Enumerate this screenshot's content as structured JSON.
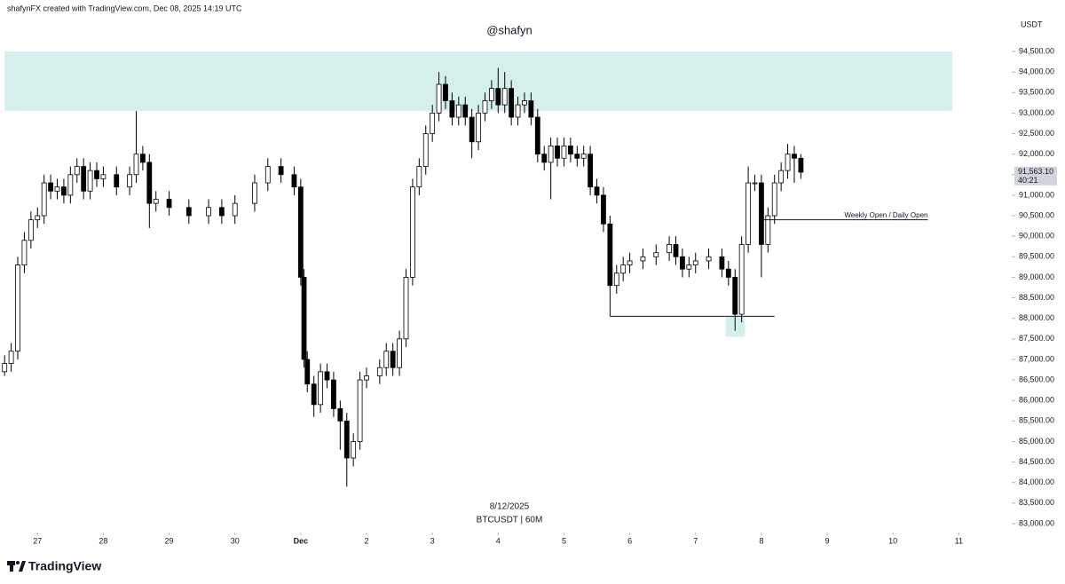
{
  "chart_data": {
    "type": "candlestick",
    "header": "shafynFX created with TradingView.com, Dec 08, 2025 14:19 UTC",
    "watermark": "@shafyn",
    "currency": "USDT",
    "date_label": "8/12/2025",
    "symbol_label": "BTCUSDT | 60M",
    "brand": "TradingView",
    "up_color": "#ffffff",
    "down_color": "#000000",
    "x": [
      -0.5,
      -0.4,
      -0.3,
      -0.2,
      -0.1,
      0,
      0.1,
      0.2,
      0.3,
      0.4,
      0.5,
      0.6,
      0.7,
      0.8,
      0.9,
      1.0,
      1.2,
      1.4,
      1.5,
      1.6,
      1.7,
      1.8,
      2.0,
      2.3,
      2.6,
      2.8,
      3.0,
      3.3,
      3.5,
      3.7,
      3.9,
      4.0,
      4.05,
      4.1,
      4.2,
      4.3,
      4.4,
      4.5,
      4.6,
      4.7,
      4.8,
      4.9,
      5.0,
      5.2,
      5.3,
      5.4,
      5.5,
      5.6,
      5.7,
      5.8,
      5.9,
      6.0,
      6.1,
      6.2,
      6.3,
      6.4,
      6.5,
      6.6,
      6.7,
      6.8,
      6.9,
      7.0,
      7.1,
      7.2,
      7.3,
      7.4,
      7.5,
      7.6,
      7.7,
      7.8,
      7.9,
      8.0,
      8.1,
      8.2,
      8.3,
      8.4,
      8.5,
      8.6,
      8.7,
      8.8,
      8.9,
      9.0,
      9.2,
      9.4,
      9.6,
      9.7,
      9.8,
      9.9,
      10.0,
      10.2,
      10.4,
      10.5,
      10.6,
      10.7,
      10.8,
      10.9,
      11.0,
      11.1,
      11.2,
      11.3,
      11.4,
      11.5,
      11.6
    ],
    "open": [
      86700,
      86900,
      87200,
      89300,
      89900,
      90400,
      90500,
      91300,
      91100,
      91200,
      91000,
      91500,
      91700,
      91100,
      91600,
      91400,
      91500,
      91200,
      91500,
      92000,
      91800,
      90800,
      90900,
      90700,
      90500,
      90700,
      90500,
      90800,
      91300,
      91700,
      91500,
      91200,
      89000,
      87000,
      86400,
      85900,
      86700,
      86500,
      85800,
      85500,
      84600,
      85000,
      86500,
      86600,
      86800,
      87200,
      86800,
      87500,
      89000,
      91200,
      91700,
      92500,
      93000,
      93700,
      93300,
      92900,
      93200,
      92900,
      92300,
      93000,
      93300,
      93600,
      93200,
      93600,
      92900,
      93200,
      93300,
      92900,
      92000,
      91800,
      92200,
      91900,
      92200,
      92000,
      91900,
      92000,
      91200,
      91000,
      90300,
      88800,
      89100,
      89300,
      89400,
      89500,
      89600,
      89800,
      89500,
      89200,
      89300,
      89400,
      89500,
      89200,
      89000,
      88100,
      89800,
      91300,
      91300,
      89800,
      90500,
      91300,
      91600,
      92000,
      91900
    ],
    "high": [
      87100,
      87400,
      89500,
      90100,
      90600,
      90700,
      91500,
      91500,
      91400,
      91400,
      91700,
      91900,
      91900,
      91800,
      91800,
      91700,
      91700,
      91700,
      93050,
      92200,
      92000,
      91100,
      91100,
      90900,
      90900,
      90900,
      91000,
      91500,
      91900,
      91900,
      91700,
      91400,
      89200,
      87200,
      86600,
      86900,
      86900,
      86700,
      86000,
      85700,
      85200,
      86700,
      86800,
      87000,
      87400,
      87400,
      87700,
      89200,
      91400,
      91900,
      92700,
      93200,
      94000,
      93900,
      93500,
      93400,
      93400,
      93100,
      93200,
      93500,
      93800,
      94100,
      94000,
      93800,
      93400,
      93500,
      93500,
      93100,
      92200,
      92400,
      92400,
      92400,
      92400,
      92200,
      92200,
      92200,
      91400,
      91200,
      90500,
      89300,
      89500,
      89600,
      89700,
      89800,
      90000,
      90000,
      89700,
      89500,
      89600,
      89700,
      89700,
      89400,
      89200,
      90000,
      91700,
      91500,
      91500,
      90700,
      91500,
      91800,
      92250,
      92200,
      92000
    ],
    "low": [
      86600,
      86700,
      87000,
      89100,
      89700,
      90200,
      90300,
      90900,
      90900,
      90800,
      90800,
      91300,
      90900,
      90900,
      91200,
      91200,
      91000,
      91000,
      91300,
      91600,
      90200,
      90600,
      90500,
      90300,
      90300,
      90300,
      90300,
      90600,
      91100,
      91300,
      91000,
      88800,
      86800,
      86200,
      85600,
      85700,
      86300,
      85600,
      84800,
      83900,
      84400,
      84800,
      86300,
      86400,
      86600,
      86600,
      86600,
      87300,
      88800,
      91000,
      91500,
      92300,
      92800,
      93100,
      92700,
      92700,
      92700,
      91900,
      92100,
      92800,
      93100,
      93000,
      93000,
      92700,
      92700,
      93000,
      92700,
      91800,
      91600,
      90900,
      91700,
      91700,
      91800,
      91700,
      91700,
      91000,
      90800,
      90100,
      88050,
      88600,
      88900,
      89100,
      89200,
      89300,
      89400,
      89300,
      89000,
      89000,
      89100,
      89200,
      89000,
      88800,
      87700,
      87900,
      89600,
      91100,
      89000,
      89600,
      90300,
      91100,
      91400,
      91300,
      91400
    ],
    "close": [
      86900,
      87200,
      89300,
      89900,
      90400,
      90500,
      91300,
      91100,
      91200,
      91000,
      91500,
      91700,
      91100,
      91600,
      91400,
      91500,
      91200,
      91500,
      92000,
      91800,
      90800,
      90900,
      90700,
      90500,
      90700,
      90500,
      90800,
      91300,
      91700,
      91500,
      91200,
      89000,
      87000,
      86400,
      85900,
      86700,
      86500,
      85800,
      85500,
      84600,
      85000,
      86500,
      86600,
      86800,
      87200,
      86800,
      87500,
      89000,
      91200,
      91700,
      92500,
      93000,
      93700,
      93300,
      92900,
      93200,
      92900,
      92300,
      93000,
      93300,
      93600,
      93200,
      93600,
      92900,
      93200,
      93300,
      92900,
      92000,
      91800,
      92200,
      91900,
      92200,
      92000,
      91900,
      92000,
      91200,
      91000,
      90300,
      88800,
      89100,
      89300,
      89400,
      89500,
      89600,
      89800,
      89500,
      89200,
      89300,
      89400,
      89500,
      89200,
      89000,
      88100,
      89800,
      91300,
      91300,
      89800,
      90500,
      91300,
      91600,
      92000,
      91900,
      91560
    ],
    "xlim": [
      -0.57,
      14.4
    ],
    "ylim": [
      82500,
      95500
    ],
    "xticks": [
      {
        "value": 0,
        "label": "27"
      },
      {
        "value": 1,
        "label": "28"
      },
      {
        "value": 2,
        "label": "29"
      },
      {
        "value": 3,
        "label": "30"
      },
      {
        "value": 4,
        "label": "Dec"
      },
      {
        "value": 5,
        "label": "2"
      },
      {
        "value": 6,
        "label": "3"
      },
      {
        "value": 7,
        "label": "4"
      },
      {
        "value": 8,
        "label": "5"
      },
      {
        "value": 9,
        "label": "6"
      },
      {
        "value": 10,
        "label": "7"
      },
      {
        "value": 11,
        "label": "8"
      },
      {
        "value": 12,
        "label": "9"
      },
      {
        "value": 13,
        "label": "10"
      },
      {
        "value": 14,
        "label": "11"
      }
    ],
    "yticks": [
      {
        "value": 94500,
        "label": "94,500.00"
      },
      {
        "value": 94000,
        "label": "94,000.00"
      },
      {
        "value": 93500,
        "label": "93,500.00"
      },
      {
        "value": 93000,
        "label": "93,000.00"
      },
      {
        "value": 92500,
        "label": "92,500.00"
      },
      {
        "value": 92000,
        "label": "92,000.00"
      },
      {
        "value": 91500,
        "label": "91,500.00"
      },
      {
        "value": 91000,
        "label": "91,000.00"
      },
      {
        "value": 90500,
        "label": "90,500.00"
      },
      {
        "value": 90000,
        "label": "90,000.00"
      },
      {
        "value": 89500,
        "label": "89,500.00"
      },
      {
        "value": 89000,
        "label": "89,000.00"
      },
      {
        "value": 88500,
        "label": "88,500.00"
      },
      {
        "value": 88000,
        "label": "88,000.00"
      },
      {
        "value": 87500,
        "label": "87,500.00"
      },
      {
        "value": 87000,
        "label": "87,000.00"
      },
      {
        "value": 86500,
        "label": "86,500.00"
      },
      {
        "value": 86000,
        "label": "86,000.00"
      },
      {
        "value": 85500,
        "label": "85,500.00"
      },
      {
        "value": 85000,
        "label": "85,000.00"
      },
      {
        "value": 84500,
        "label": "84,500.00"
      },
      {
        "value": 84000,
        "label": "84,000.00"
      },
      {
        "value": 83500,
        "label": "83,500.00"
      },
      {
        "value": 83000,
        "label": "83,000.00"
      }
    ],
    "zones": [
      {
        "xlim": [
          -0.5,
          13.9
        ],
        "ylim": [
          93050,
          94500
        ],
        "color": "#d5efec"
      },
      {
        "xlim": [
          10.46,
          10.75
        ],
        "ylim": [
          87550,
          88050
        ],
        "color": "#d5efec"
      }
    ],
    "levels": [
      {
        "value": 88050,
        "x": [
          8.7,
          11.2
        ],
        "color": "#131722"
      },
      {
        "value": 90400,
        "x": [
          11.0,
          13.53
        ],
        "color": "#131722",
        "label": "Weekly Open / Daily Open"
      }
    ],
    "last_price": {
      "value": 91563.1,
      "label": "91,563.10"
    },
    "countdown": "40:21"
  }
}
